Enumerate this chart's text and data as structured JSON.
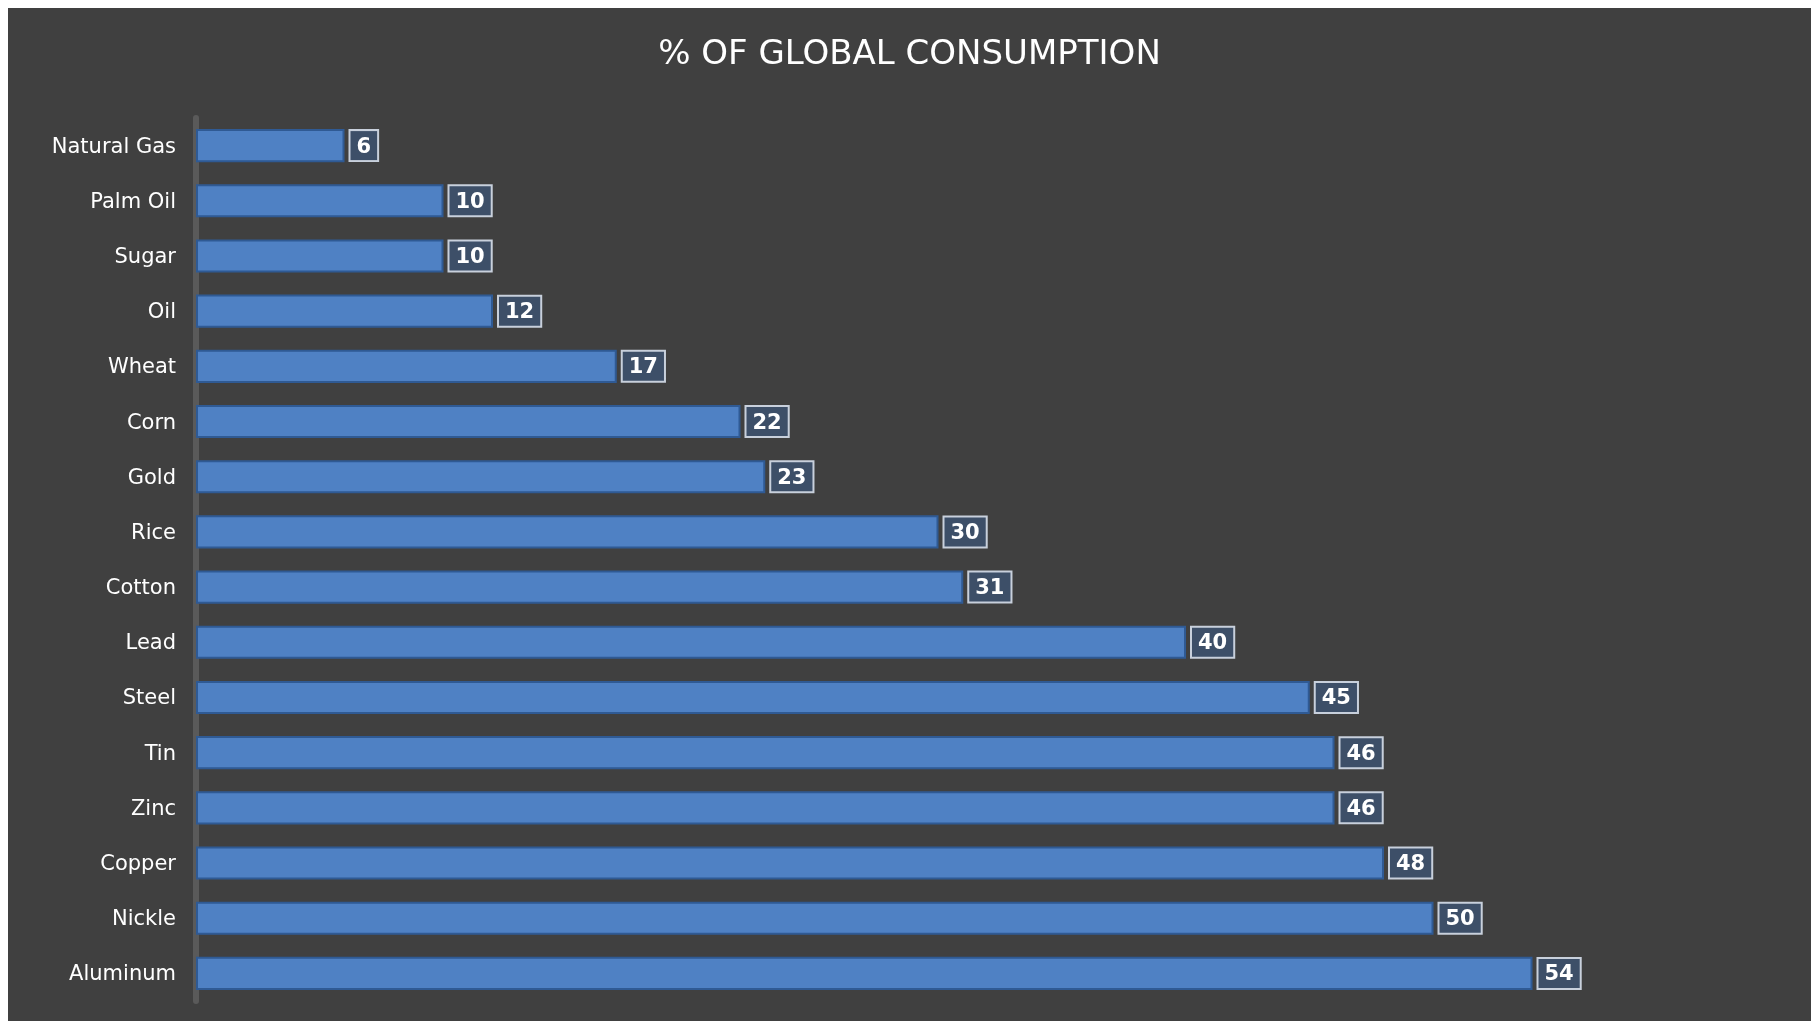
{
  "chart_data": {
    "type": "bar",
    "orientation": "horizontal",
    "title": "% OF GLOBAL CONSUMPTION",
    "categories": [
      "Natural Gas",
      "Palm Oil",
      "Sugar",
      "Oil",
      "Wheat",
      "Corn",
      "Gold",
      "Rice",
      "Cotton",
      "Lead",
      "Steel",
      "Tin",
      "Zinc",
      "Copper",
      "Nickle",
      "Aluminum"
    ],
    "values": [
      6,
      10,
      10,
      12,
      17,
      22,
      23,
      30,
      31,
      40,
      45,
      46,
      46,
      48,
      50,
      54
    ],
    "color": "#4f81c4",
    "data_labels": true,
    "grid": false
  }
}
